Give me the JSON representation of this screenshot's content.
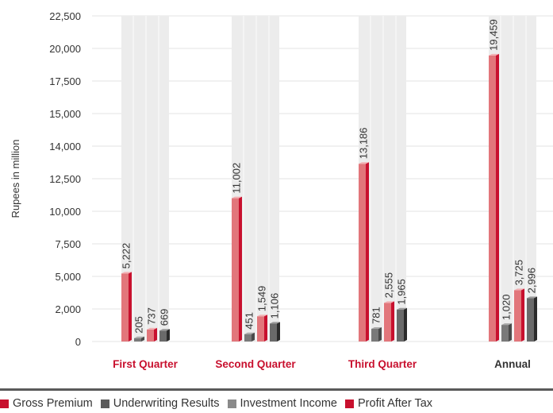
{
  "chart_data": {
    "type": "bar",
    "title": "",
    "xlabel": "",
    "ylabel": "Rupees in million",
    "categories": [
      "First Quarter",
      "Second Quarter",
      "Third Quarter",
      "Annual"
    ],
    "category_colors": [
      "#c8102e",
      "#c8102e",
      "#c8102e",
      "#333333"
    ],
    "y_ticks": [
      "22,500",
      "20,000",
      "17,500",
      "15,000",
      "14,000",
      "12,500",
      "10,000",
      "7,500",
      "5,000",
      "2,000",
      "0"
    ],
    "grid": true,
    "legend_position": "bottom",
    "series": [
      {
        "name": "Gross Premium",
        "color": "#c8102e",
        "values": [
          5222,
          11002,
          13186,
          19459
        ],
        "labels": [
          "5,222",
          "11,002",
          "13,186",
          "19,459"
        ]
      },
      {
        "name": "Underwriting Results",
        "color": "#5a5a5a",
        "values": [
          205,
          451,
          781,
          1020
        ],
        "labels": [
          "205",
          "451",
          "781",
          "1,020"
        ]
      },
      {
        "name": "Investment Income",
        "color": "#8a8a8a",
        "values": [
          737,
          1549,
          2555,
          3725
        ],
        "labels": [
          "737",
          "1,549",
          "2,555",
          "3,725"
        ]
      },
      {
        "name": "Profit After Tax",
        "color": "#c8102e",
        "values": [
          669,
          1106,
          1965,
          2996
        ],
        "labels": [
          "669",
          "1,106",
          "1,965",
          "2,996"
        ]
      }
    ]
  }
}
